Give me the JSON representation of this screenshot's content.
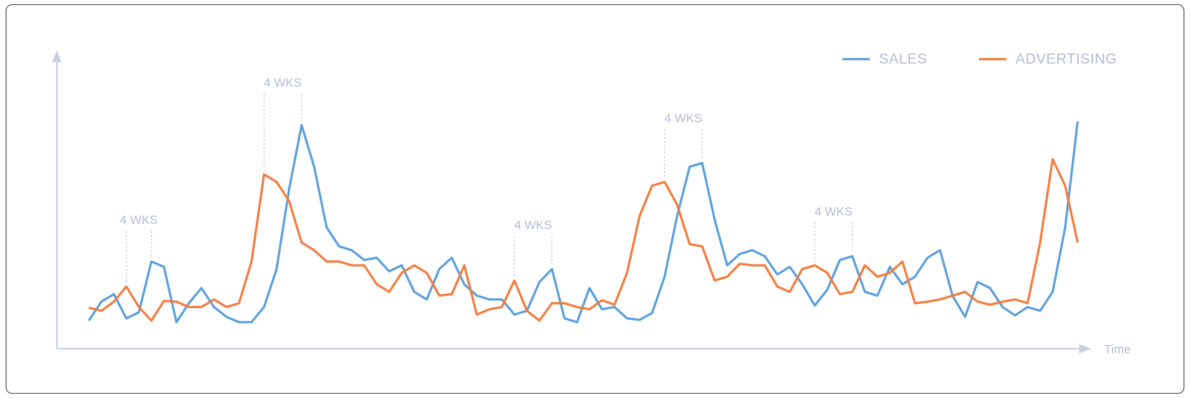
{
  "chart_data": {
    "type": "line",
    "x_label": "Time",
    "ylim": [
      0,
      392
    ],
    "legend": "top-right",
    "grid": false,
    "series": [
      {
        "name": "SALES",
        "color": "#5a9fdc",
        "values": [
          37,
          62,
          72,
          40,
          48,
          115,
          108,
          35,
          60,
          80,
          55,
          42,
          35,
          35,
          55,
          105,
          210,
          295,
          240,
          160,
          135,
          130,
          117,
          120,
          102,
          110,
          75,
          65,
          105,
          120,
          85,
          70,
          65,
          65,
          45,
          50,
          88,
          105,
          40,
          35,
          80,
          52,
          55,
          40,
          38,
          47,
          95,
          175,
          240,
          245,
          170,
          110,
          125,
          130,
          122,
          98,
          108,
          85,
          57,
          78,
          117,
          122,
          75,
          70,
          108,
          85,
          95,
          120,
          130,
          70,
          42,
          88,
          80,
          55,
          44,
          55,
          50,
          75,
          160,
          300
        ]
      },
      {
        "name": "ADVERTISING",
        "color": "#f47b3c",
        "values": [
          54,
          50,
          62,
          82,
          55,
          37,
          63,
          62,
          55,
          55,
          65,
          55,
          60,
          115,
          230,
          220,
          195,
          140,
          130,
          115,
          115,
          110,
          110,
          85,
          75,
          100,
          110,
          100,
          70,
          72,
          110,
          45,
          52,
          55,
          90,
          50,
          37,
          60,
          60,
          55,
          52,
          64,
          58,
          100,
          175,
          215,
          220,
          190,
          138,
          135,
          90,
          95,
          112,
          110,
          110,
          82,
          75,
          105,
          110,
          100,
          72,
          75,
          110,
          95,
          100,
          115,
          60,
          62,
          65,
          70,
          75,
          62,
          58,
          62,
          65,
          60,
          140,
          250,
          215,
          140
        ]
      }
    ],
    "annotations": [
      "4 WKS",
      "4 WKS",
      "4 WKS",
      "4 WKS",
      "4 WKS"
    ]
  }
}
